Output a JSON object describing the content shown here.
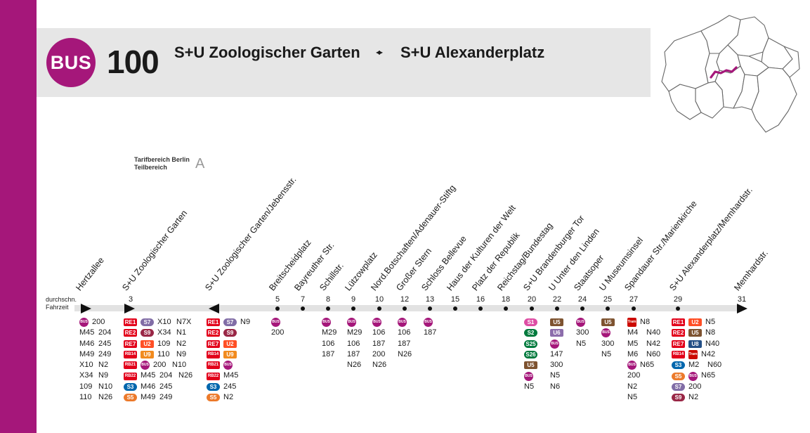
{
  "header": {
    "mode_badge": "BUS",
    "line": "100",
    "from": "S+U Zoologischer Garten",
    "arrow": "◂▸",
    "to": "S+U Alexanderplatz"
  },
  "tariff": {
    "label_line1": "Tarifbereich Berlin",
    "label_line2": "Teilbereich",
    "zone": "A"
  },
  "avg_time_label": {
    "line1": "durchschn.",
    "line2": "Fahrzeit"
  },
  "colors": {
    "bus": "#a5177a",
    "re": "#e2001a",
    "s1": "#de4da4",
    "s2": "#007a3d",
    "s3": "#0066ad",
    "s5": "#ec7a2b",
    "s7": "#816da6",
    "s9": "#992746",
    "u2": "#ff4f25",
    "u5": "#7e5330",
    "u6": "#8c6dab",
    "u8": "#224f86",
    "u9": "#f18b1f",
    "tram": "#cc0a00"
  },
  "stops": [
    {
      "name": "Hertzallee",
      "min": ""
    },
    {
      "name": "S+U Zoologischer Garten",
      "min": "3"
    },
    {
      "name": "S+U Zoologischer Garten/Jebensstr.",
      "min": ""
    },
    {
      "name": "Breitscheidplatz",
      "min": "5"
    },
    {
      "name": "Bayreuther Str.",
      "min": "7"
    },
    {
      "name": "Schillstr.",
      "min": "8"
    },
    {
      "name": "Lützowplatz",
      "min": "9"
    },
    {
      "name": "Nord.Botschaften/Adenauer-Stiftg",
      "min": "10"
    },
    {
      "name": "Großer Stern",
      "min": "12"
    },
    {
      "name": "Schloss Bellevue",
      "min": "13"
    },
    {
      "name": "Haus der Kulturen der Welt",
      "min": "15"
    },
    {
      "name": "Platz der Republik",
      "min": "16"
    },
    {
      "name": "Reichstag/Bundestag",
      "min": "18"
    },
    {
      "name": "S+U Brandenburger Tor",
      "min": "20"
    },
    {
      "name": "U Unter den Linden",
      "min": "22"
    },
    {
      "name": "Staatsoper",
      "min": "24"
    },
    {
      "name": "U Museumsinsel",
      "min": "25"
    },
    {
      "name": "Spandauer Str./Marienkirche",
      "min": "27"
    },
    {
      "name": "S+U Alexanderplatz/Memhardstr.",
      "min": "29"
    },
    {
      "name": "Memhardstr.",
      "min": "31"
    }
  ],
  "transfers": {
    "hertzallee": {
      "a": [
        "BUS",
        "M45",
        "M46",
        "M49",
        "X10",
        "X34",
        "109",
        "110"
      ],
      "b": [
        "200",
        "204",
        "245",
        "249",
        "N2",
        "N9",
        "N10",
        "N26"
      ]
    },
    "zoo": {
      "r1": [
        "RE1",
        "S7",
        "X10",
        "N7X"
      ],
      "r2": [
        "RE2",
        "S9",
        "X34",
        "N1"
      ],
      "r3": [
        "RE7",
        "U2",
        "109",
        "N2"
      ],
      "r4": [
        "RB14",
        "U9",
        "110",
        "N9"
      ],
      "r5": [
        "RB21",
        "BUS",
        "200",
        "N10"
      ],
      "r6": [
        "RB22",
        "M45",
        "204",
        "N26"
      ],
      "r7": [
        "S3",
        "M46",
        "245"
      ],
      "r8": [
        "S5",
        "M49",
        "249"
      ]
    },
    "jebens": {
      "r1": [
        "RE1",
        "S7",
        "N9"
      ],
      "r2": [
        "RE2",
        "S9"
      ],
      "r3": [
        "RE7",
        "U2"
      ],
      "r4": [
        "RB14",
        "U9"
      ],
      "r5": [
        "RB21",
        "BUS"
      ],
      "r6": [
        "RB22",
        "M45"
      ],
      "r7": [
        "S3",
        "245"
      ],
      "r8": [
        "S5",
        "N2"
      ]
    },
    "breitscheid": [
      "BUS",
      "200"
    ],
    "schill": [
      "BUS",
      "M29",
      "106",
      "187"
    ],
    "luetzow": [
      "BUS",
      "M29",
      "106",
      "187",
      "N26"
    ],
    "botschaften": [
      "BUS",
      "106",
      "187",
      "200",
      "N26"
    ],
    "stern": [
      "BUS",
      "106",
      "187",
      "N26"
    ],
    "bellevue": [
      "BUS",
      "187"
    ],
    "brandenburg": [
      "S1",
      "S2",
      "S25",
      "S26",
      "U5",
      "BUS",
      "N5"
    ],
    "linden": [
      "U5",
      "U6",
      "BUS",
      "147",
      "300",
      "N5",
      "N6"
    ],
    "staatsoper": [
      "BUS",
      "300",
      "N5"
    ],
    "museum": [
      "U5",
      "BUS",
      "300",
      "N5"
    ],
    "marien": {
      "r1": [
        "Tram",
        "N8"
      ],
      "r2": [
        "M4",
        "N40"
      ],
      "r3": [
        "M5",
        "N42"
      ],
      "r4": [
        "M6",
        "N60"
      ],
      "r5": [
        "BUS",
        "N65"
      ],
      "r6": [
        "200"
      ],
      "r7": [
        "N2"
      ],
      "r8": [
        "N5"
      ]
    },
    "alex": {
      "r1": [
        "RE1",
        "U2",
        "N5"
      ],
      "r2": [
        "RE2",
        "U5",
        "N8"
      ],
      "r3": [
        "RE7",
        "U8",
        "N40"
      ],
      "r4": [
        "RB14",
        "Tram",
        "N42"
      ],
      "r5": [
        "S3",
        "M2",
        "N60"
      ],
      "r6": [
        "S5",
        "BUS",
        "N65"
      ],
      "r7": [
        "S7",
        "200"
      ],
      "r8": [
        "S9",
        "N2"
      ]
    }
  }
}
